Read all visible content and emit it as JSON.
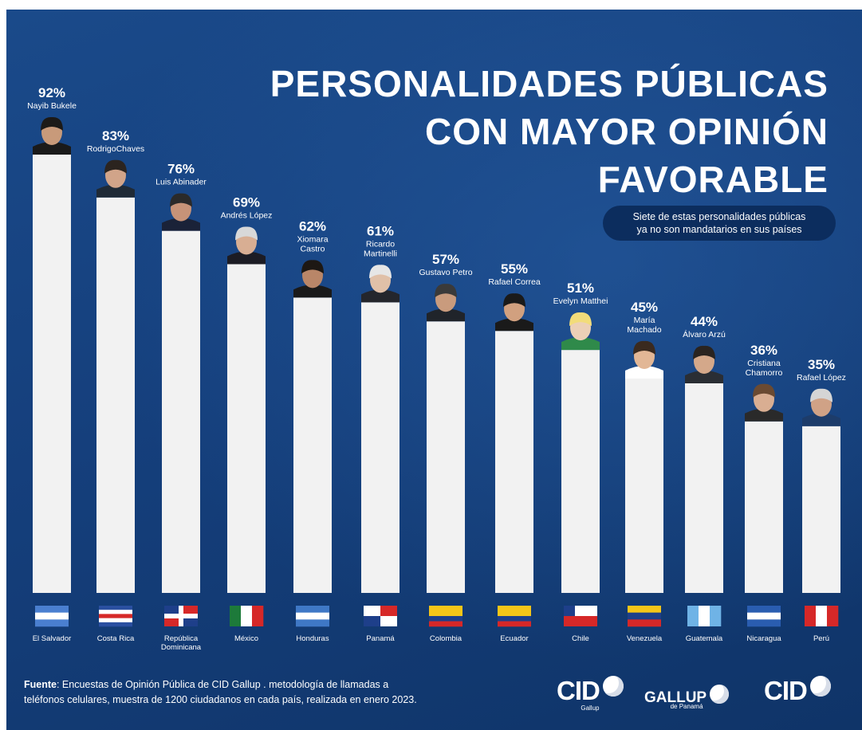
{
  "title_lines": [
    "PERSONALIDADES PÚBLICAS",
    "CON MAYOR OPINIÓN",
    "FAVORABLE"
  ],
  "note_lines": [
    "Siete de estas personalidades públicas",
    "ya no son mandatarios en sus países"
  ],
  "source": {
    "label": "Fuente",
    "line1": ": Encuestas de Opinión Pública de CID Gallup . metodología de llamadas a",
    "line2": "teléfonos celulares, muestra de 1200 ciudadanos en cada país, realizada en enero 2023."
  },
  "logos": [
    {
      "name": "CID",
      "sub": "Gallup"
    },
    {
      "name": "GALLUP",
      "sub": "de Panamá"
    },
    {
      "name": "CID",
      "sub": ""
    }
  ],
  "chart_data": {
    "type": "bar",
    "title": "PERSONALIDADES PÚBLICAS CON MAYOR OPINIÓN FAVORABLE",
    "value_suffix": "%",
    "ylim": [
      0,
      100
    ],
    "grid": false,
    "categories": [
      "El Salvador",
      "Costa Rica",
      "República Dominicana",
      "México",
      "Honduras",
      "Panamá",
      "Colombia",
      "Ecuador",
      "Chile",
      "Venezuela",
      "Guatemala",
      "Nicaragua",
      "Perú"
    ],
    "person_labels": [
      [
        "Nayib Bukele"
      ],
      [
        "RodrigoChaves"
      ],
      [
        "Luis Abinader"
      ],
      [
        "Andrés López"
      ],
      [
        "Xiomara",
        "Castro"
      ],
      [
        "Ricardo",
        "Martinelli"
      ],
      [
        "Gustavo Petro"
      ],
      [
        "Rafael Correa"
      ],
      [
        "Evelyn Matthei"
      ],
      [
        "María",
        "Machado"
      ],
      [
        "Álvaro Arzú"
      ],
      [
        "Cristiana",
        "Chamorro"
      ],
      [
        "Rafael López"
      ]
    ],
    "values": [
      92,
      83,
      76,
      69,
      62,
      61,
      57,
      55,
      51,
      45,
      44,
      36,
      35
    ],
    "bar_color": "#f2f2f2",
    "flags": [
      {
        "stripes": [
          "#4a7fd0",
          "#ffffff",
          "#4a7fd0"
        ],
        "dir": "h"
      },
      {
        "stripes": [
          "#2a4fa0",
          "#ffffff",
          "#d62828",
          "#ffffff",
          "#2a4fa0"
        ],
        "dir": "h"
      },
      {
        "stripes": [
          "#1e3f8a",
          "#d62828"
        ],
        "dir": "dr"
      },
      {
        "stripes": [
          "#1d7a3a",
          "#ffffff",
          "#d62828"
        ],
        "dir": "v"
      },
      {
        "stripes": [
          "#3f78c6",
          "#ffffff",
          "#3f78c6"
        ],
        "dir": "h"
      },
      {
        "stripes": [
          "#ffffff",
          "#d62828",
          "#1e3f8a",
          "#ffffff"
        ],
        "dir": "q"
      },
      {
        "stripes": [
          "#f5c518",
          "#f5c518",
          "#1e3f8a",
          "#d62828"
        ],
        "dir": "h"
      },
      {
        "stripes": [
          "#f5c518",
          "#f5c518",
          "#1e3f8a",
          "#d62828"
        ],
        "dir": "h"
      },
      {
        "stripes": [
          "#1e3f8a",
          "#ffffff",
          "#d62828"
        ],
        "dir": "cl"
      },
      {
        "stripes": [
          "#f5c518",
          "#1e3f8a",
          "#d62828"
        ],
        "dir": "h"
      },
      {
        "stripes": [
          "#6fb3e6",
          "#ffffff",
          "#6fb3e6"
        ],
        "dir": "v"
      },
      {
        "stripes": [
          "#2a5db0",
          "#ffffff",
          "#2a5db0"
        ],
        "dir": "h"
      },
      {
        "stripes": [
          "#d62828",
          "#ffffff",
          "#d62828"
        ],
        "dir": "v"
      }
    ]
  }
}
